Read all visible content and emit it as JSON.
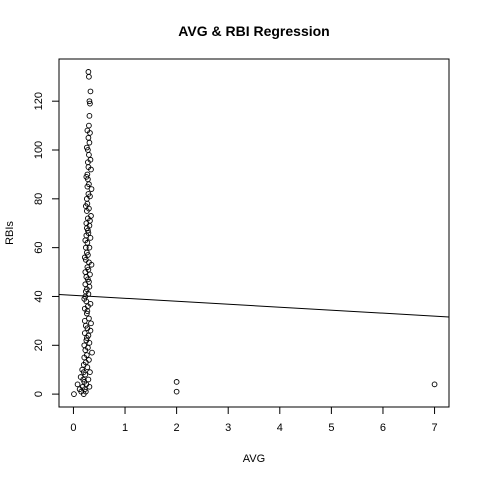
{
  "chart_data": {
    "type": "scatter",
    "title": "AVG & RBI Regression",
    "xlabel": "AVG",
    "ylabel": "RBIs",
    "xlim": [
      -0.28,
      7.28
    ],
    "ylim": [
      -5.28,
      137.28
    ],
    "xticks": [
      0,
      1,
      2,
      3,
      4,
      5,
      6,
      7
    ],
    "yticks": [
      0,
      20,
      40,
      60,
      80,
      100,
      120
    ],
    "grid": false,
    "legend": "none",
    "marker": "open-circle",
    "regression_line": {
      "x": [
        -0.28,
        7.28
      ],
      "y": [
        40.8,
        31.6
      ]
    },
    "series": [
      {
        "points": [
          {
            "x": 0.01,
            "y": 0
          },
          {
            "x": 0.08,
            "y": 4
          },
          {
            "x": 0.12,
            "y": 2
          },
          {
            "x": 0.14,
            "y": 7
          },
          {
            "x": 0.15,
            "y": 1
          },
          {
            "x": 0.17,
            "y": 10
          },
          {
            "x": 0.18,
            "y": 3
          },
          {
            "x": 0.19,
            "y": 6
          },
          {
            "x": 0.2,
            "y": 9
          },
          {
            "x": 0.2,
            "y": 12
          },
          {
            "x": 0.2,
            "y": 0
          },
          {
            "x": 0.21,
            "y": 15
          },
          {
            "x": 0.21,
            "y": 20
          },
          {
            "x": 0.21,
            "y": 5
          },
          {
            "x": 0.22,
            "y": 25
          },
          {
            "x": 0.22,
            "y": 30
          },
          {
            "x": 0.22,
            "y": 35
          },
          {
            "x": 0.22,
            "y": 2
          },
          {
            "x": 0.23,
            "y": 40
          },
          {
            "x": 0.23,
            "y": 45
          },
          {
            "x": 0.23,
            "y": 50
          },
          {
            "x": 0.23,
            "y": 18
          },
          {
            "x": 0.23,
            "y": 8
          },
          {
            "x": 0.24,
            "y": 55
          },
          {
            "x": 0.24,
            "y": 60
          },
          {
            "x": 0.24,
            "y": 28
          },
          {
            "x": 0.24,
            "y": 13
          },
          {
            "x": 0.24,
            "y": 1
          },
          {
            "x": 0.25,
            "y": 65
          },
          {
            "x": 0.25,
            "y": 70
          },
          {
            "x": 0.25,
            "y": 38
          },
          {
            "x": 0.25,
            "y": 22
          },
          {
            "x": 0.25,
            "y": 4
          },
          {
            "x": 0.25,
            "y": 48
          },
          {
            "x": 0.26,
            "y": 75
          },
          {
            "x": 0.26,
            "y": 80
          },
          {
            "x": 0.26,
            "y": 58
          },
          {
            "x": 0.26,
            "y": 33
          },
          {
            "x": 0.26,
            "y": 16
          },
          {
            "x": 0.26,
            "y": 68
          },
          {
            "x": 0.26,
            "y": 43
          },
          {
            "x": 0.27,
            "y": 85
          },
          {
            "x": 0.27,
            "y": 90
          },
          {
            "x": 0.27,
            "y": 62
          },
          {
            "x": 0.27,
            "y": 52
          },
          {
            "x": 0.27,
            "y": 27
          },
          {
            "x": 0.27,
            "y": 11
          },
          {
            "x": 0.27,
            "y": 78
          },
          {
            "x": 0.28,
            "y": 95
          },
          {
            "x": 0.28,
            "y": 100
          },
          {
            "x": 0.28,
            "y": 72
          },
          {
            "x": 0.28,
            "y": 47
          },
          {
            "x": 0.28,
            "y": 36
          },
          {
            "x": 0.28,
            "y": 19
          },
          {
            "x": 0.28,
            "y": 88
          },
          {
            "x": 0.28,
            "y": 57
          },
          {
            "x": 0.29,
            "y": 105
          },
          {
            "x": 0.29,
            "y": 82
          },
          {
            "x": 0.29,
            "y": 66
          },
          {
            "x": 0.29,
            "y": 41
          },
          {
            "x": 0.29,
            "y": 24
          },
          {
            "x": 0.29,
            "y": 93
          },
          {
            "x": 0.29,
            "y": 6
          },
          {
            "x": 0.3,
            "y": 110
          },
          {
            "x": 0.3,
            "y": 98
          },
          {
            "x": 0.3,
            "y": 76
          },
          {
            "x": 0.3,
            "y": 54
          },
          {
            "x": 0.3,
            "y": 31
          },
          {
            "x": 0.3,
            "y": 14
          },
          {
            "x": 0.3,
            "y": 86
          },
          {
            "x": 0.31,
            "y": 114
          },
          {
            "x": 0.31,
            "y": 103
          },
          {
            "x": 0.31,
            "y": 69
          },
          {
            "x": 0.31,
            "y": 44
          },
          {
            "x": 0.31,
            "y": 21
          },
          {
            "x": 0.31,
            "y": 60
          },
          {
            "x": 0.32,
            "y": 119
          },
          {
            "x": 0.32,
            "y": 107
          },
          {
            "x": 0.32,
            "y": 81
          },
          {
            "x": 0.32,
            "y": 49
          },
          {
            "x": 0.32,
            "y": 9
          },
          {
            "x": 0.33,
            "y": 124
          },
          {
            "x": 0.33,
            "y": 96
          },
          {
            "x": 0.33,
            "y": 64
          },
          {
            "x": 0.33,
            "y": 37
          },
          {
            "x": 0.34,
            "y": 92
          },
          {
            "x": 0.34,
            "y": 73
          },
          {
            "x": 0.34,
            "y": 29
          },
          {
            "x": 0.35,
            "y": 84
          },
          {
            "x": 0.35,
            "y": 53
          },
          {
            "x": 0.36,
            "y": 17
          },
          {
            "x": 0.3,
            "y": 130
          },
          {
            "x": 0.29,
            "y": 132
          },
          {
            "x": 0.31,
            "y": 120
          },
          {
            "x": 0.27,
            "y": 108
          },
          {
            "x": 0.25,
            "y": 89
          },
          {
            "x": 0.24,
            "y": 77
          },
          {
            "x": 0.23,
            "y": 63
          },
          {
            "x": 0.22,
            "y": 56
          },
          {
            "x": 0.21,
            "y": 39
          },
          {
            "x": 0.26,
            "y": 101
          },
          {
            "x": 0.28,
            "y": 67
          },
          {
            "x": 0.27,
            "y": 34
          },
          {
            "x": 0.26,
            "y": 23
          },
          {
            "x": 0.24,
            "y": 42
          },
          {
            "x": 0.29,
            "y": 51
          },
          {
            "x": 0.3,
            "y": 46
          },
          {
            "x": 0.32,
            "y": 71
          },
          {
            "x": 0.33,
            "y": 26
          },
          {
            "x": 0.31,
            "y": 3
          },
          {
            "x": 2.0,
            "y": 5
          },
          {
            "x": 2.0,
            "y": 1
          },
          {
            "x": 7.0,
            "y": 4
          }
        ]
      }
    ]
  }
}
